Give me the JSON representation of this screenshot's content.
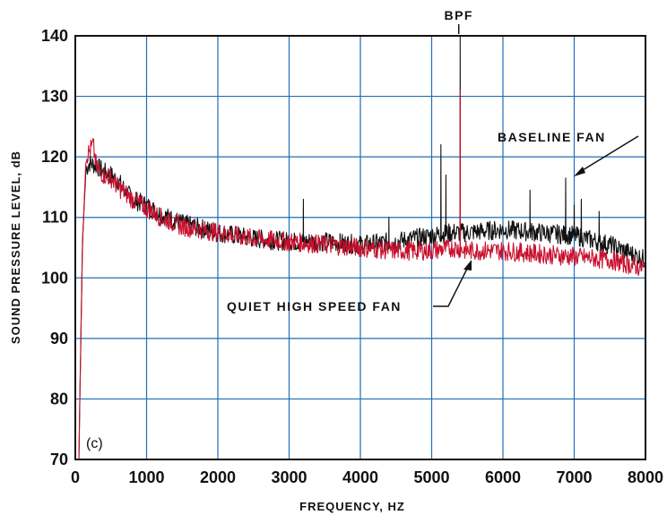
{
  "chart_data": {
    "type": "line",
    "xlabel": "FREQUENCY, HZ",
    "ylabel": "SOUND PRESSURE LEVEL, dB",
    "xlim": [
      0,
      8000
    ],
    "ylim": [
      70,
      140
    ],
    "xticks": [
      0,
      1000,
      2000,
      3000,
      4000,
      5000,
      6000,
      7000,
      8000
    ],
    "yticks": [
      70,
      80,
      90,
      100,
      110,
      120,
      130,
      140
    ],
    "grid": true,
    "panel_label": "(c)",
    "annotations": [
      {
        "text": "BPF",
        "x": 5380,
        "y": 141
      },
      {
        "text": "BASELINE FAN",
        "x": 6900,
        "y": 116
      },
      {
        "text": "QUIET HIGH SPEED FAN",
        "x": 5200,
        "y": 101
      }
    ],
    "series": [
      {
        "color": "#111111",
        "x": [
          50,
          100,
          150,
          200,
          300,
          400,
          500,
          600,
          800,
          1000,
          1200,
          1500,
          2000,
          2500,
          3000,
          3500,
          4000,
          4500,
          5000,
          5300,
          5500,
          6000,
          6500,
          7000,
          7500,
          8000
        ],
        "y": [
          70,
          106,
          118,
          119,
          118.5,
          117.5,
          117,
          116,
          113,
          112,
          110.5,
          109,
          107.5,
          106.5,
          106,
          106,
          105.5,
          106,
          107,
          107.5,
          107.5,
          108,
          107.5,
          107,
          105.5,
          103
        ],
        "peaks": [
          {
            "x": 3200,
            "y": 113
          },
          {
            "x": 4400,
            "y": 110
          },
          {
            "x": 5130,
            "y": 122
          },
          {
            "x": 5200,
            "y": 117
          },
          {
            "x": 5400,
            "y": 140
          },
          {
            "x": 6380,
            "y": 114.5
          },
          {
            "x": 6880,
            "y": 116.5
          },
          {
            "x": 7000,
            "y": 112
          },
          {
            "x": 7100,
            "y": 113
          },
          {
            "x": 7350,
            "y": 111
          }
        ]
      },
      {
        "color": "#c8102e",
        "x": [
          50,
          100,
          150,
          200,
          250,
          300,
          400,
          500,
          600,
          800,
          1000,
          1200,
          1500,
          2000,
          2500,
          3000,
          3500,
          4000,
          4500,
          5000,
          5300,
          5500,
          6000,
          6500,
          7000,
          7500,
          8000
        ],
        "y": [
          70,
          105,
          120,
          121,
          122,
          118,
          117,
          116.5,
          115,
          113,
          111.5,
          110,
          108.5,
          107.5,
          106.5,
          106,
          105.5,
          105,
          104.5,
          104.5,
          105,
          104.5,
          104.5,
          104,
          103.5,
          103,
          101.5
        ],
        "peaks": [
          {
            "x": 5400,
            "y": 131
          }
        ]
      }
    ]
  }
}
